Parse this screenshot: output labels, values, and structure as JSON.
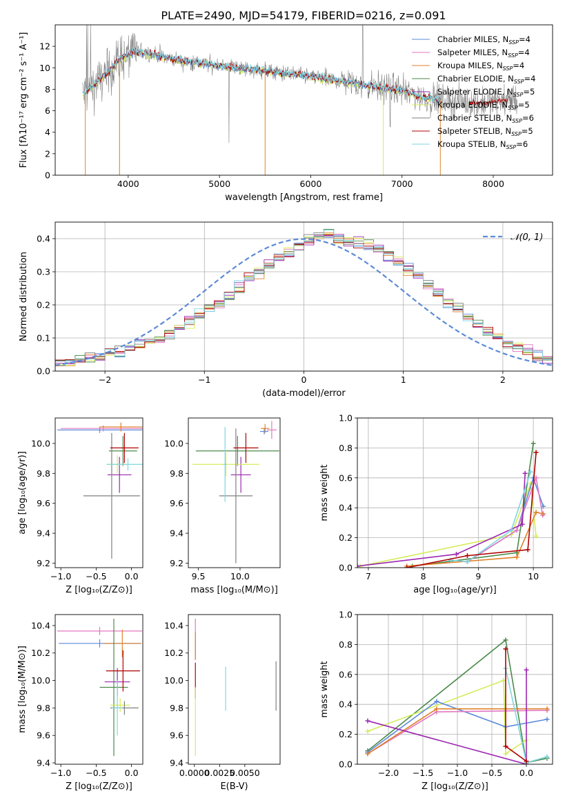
{
  "title": "PLATE=2490, MJD=54179, FIBERID=0216, z=0.091",
  "colors": {
    "chabrier_miles": "#5b8ad8",
    "salpeter_miles": "#e377c2",
    "kroupa_miles": "#e0802a",
    "chabrier_elodie": "#4a8a4a",
    "salpeter_elodie": "#9b27b0",
    "kroupa_elodie": "#d4ec58",
    "chabrier_stelib": "#7f7f7f",
    "salpeter_stelib": "#b00000",
    "kroupa_stelib": "#7fd6e0",
    "normal_curve": "#5b8ad8"
  },
  "chart_data": [
    {
      "id": "spectrum",
      "type": "line",
      "xlabel": "wavelength [Angstrom, rest frame]",
      "ylabel": "Flux [fλ10⁻¹⁷ erg cm⁻² s⁻¹ A⁻¹]",
      "xlim": [
        3200,
        8650
      ],
      "ylim": [
        0,
        14
      ],
      "xticks": [
        "4000",
        "5000",
        "6000",
        "7000",
        "8000"
      ],
      "yticks": [
        "0",
        "2",
        "4",
        "6",
        "8",
        "10",
        "12"
      ],
      "grid": false,
      "legend_position": "top-right",
      "legend": [
        "Chabrier MILES, N_SSP=4",
        "Salpeter MILES, N_SSP=4",
        "Kroupa MILES, N_SSP=4",
        "Chabrier ELODIE, N_SSP=4",
        "Salpeter ELODIE, N_SSP=5",
        "Kroupa ELODIE, N_SSP=5",
        "Chabrier STELIB, N_SSP=6",
        "Salpeter STELIB, N_SSP=5",
        "Kroupa STELIB, N_SSP=6"
      ],
      "data_continuum": {
        "x": [
          3500,
          3600,
          3700,
          3800,
          3900,
          4000,
          4100,
          4300,
          4500,
          4700,
          5000,
          5300,
          5600,
          6000,
          6400,
          6800,
          7000,
          7200,
          7400,
          7600,
          7800,
          8000,
          8200
        ],
        "y": [
          7.5,
          8.2,
          9.0,
          9.8,
          10.8,
          11.2,
          11.5,
          11.2,
          10.8,
          10.5,
          10.2,
          9.9,
          9.6,
          9.2,
          8.7,
          8.1,
          7.9,
          7.3,
          7.0,
          6.9,
          6.7,
          6.8,
          7.1
        ]
      }
    },
    {
      "id": "residual-histogram",
      "type": "bar",
      "xlabel": "(data-model)/error",
      "ylabel": "Normed distribution",
      "xlim": [
        -2.5,
        2.5
      ],
      "ylim": [
        0,
        0.45
      ],
      "xticks": [
        "−2",
        "−1",
        "0",
        "1",
        "2"
      ],
      "yticks": [
        "0.0",
        "0.1",
        "0.2",
        "0.3",
        "0.4"
      ],
      "grid": true,
      "legend_position": "top-right",
      "legend": [
        "𝒩(0, 1)"
      ],
      "bin_width": 0.1,
      "mean_bin_values": [
        0.025,
        0.03,
        0.035,
        0.04,
        0.045,
        0.055,
        0.06,
        0.07,
        0.08,
        0.09,
        0.1,
        0.115,
        0.13,
        0.15,
        0.17,
        0.19,
        0.2,
        0.23,
        0.25,
        0.28,
        0.3,
        0.32,
        0.34,
        0.36,
        0.38,
        0.395,
        0.41,
        0.415,
        0.4,
        0.39,
        0.39,
        0.38,
        0.37,
        0.35,
        0.33,
        0.31,
        0.29,
        0.26,
        0.24,
        0.2,
        0.19,
        0.165,
        0.14,
        0.12,
        0.1,
        0.085,
        0.07,
        0.06,
        0.045,
        0.035
      ]
    },
    {
      "id": "age-vs-Z",
      "type": "scatter",
      "xlabel": "Z [log₁₀(Z/Z⊙)]",
      "ylabel": "age  [log₁₀(age/yr)]",
      "xlim": [
        -1.08,
        0.16
      ],
      "ylim": [
        9.17,
        10.17
      ],
      "xticks": [
        "−1.0",
        "−0.5",
        "0.0"
      ],
      "yticks": [
        "9.2",
        "9.4",
        "9.6",
        "9.8",
        "10.0"
      ],
      "series": [
        {
          "x": -0.45,
          "y": 10.09,
          "xerr": 0.6,
          "yerr": 0.02,
          "c": "chabrier_miles"
        },
        {
          "x": -0.4,
          "y": 10.1,
          "xerr": 0.6,
          "yerr": 0.02,
          "c": "salpeter_miles"
        },
        {
          "x": -0.15,
          "y": 10.11,
          "xerr": 0.3,
          "yerr": 0.03,
          "c": "kroupa_miles"
        },
        {
          "x": -0.12,
          "y": 9.95,
          "xerr": 0.2,
          "yerr": 0.1,
          "c": "chabrier_elodie"
        },
        {
          "x": -0.17,
          "y": 9.79,
          "xerr": 0.17,
          "yerr": 0.12,
          "c": "salpeter_elodie"
        },
        {
          "x": -0.2,
          "y": 9.86,
          "xerr": 0.15,
          "yerr": 0.06,
          "c": "kroupa_elodie"
        },
        {
          "x": -0.28,
          "y": 9.65,
          "xerr": 0.4,
          "yerr": 0.42,
          "c": "chabrier_stelib"
        },
        {
          "x": -0.1,
          "y": 9.97,
          "xerr": 0.2,
          "yerr": 0.1,
          "c": "salpeter_stelib"
        },
        {
          "x": -0.05,
          "y": 9.86,
          "xerr": 0.3,
          "yerr": 0.04,
          "c": "kroupa_stelib"
        }
      ]
    },
    {
      "id": "age-vs-mass",
      "type": "scatter",
      "xlabel": "mass [log₁₀(M/M⊙)]",
      "xlim": [
        9.38,
        10.48
      ],
      "ylim": [
        9.17,
        10.17
      ],
      "xticks": [
        "9.5",
        "10.0"
      ],
      "yticks": [
        "9.2",
        "9.4",
        "9.6",
        "9.8",
        "10.0"
      ],
      "series": [
        {
          "x": 10.29,
          "y": 10.08,
          "xerr": 0.05,
          "yerr": 0.02,
          "c": "chabrier_miles"
        },
        {
          "x": 10.38,
          "y": 10.09,
          "xerr": 0.06,
          "yerr": 0.06,
          "c": "salpeter_miles"
        },
        {
          "x": 10.3,
          "y": 10.1,
          "xerr": 0.05,
          "yerr": 0.03,
          "c": "kroupa_miles"
        },
        {
          "x": 9.97,
          "y": 9.95,
          "xerr": 0.5,
          "yerr": 0.1,
          "c": "chabrier_elodie"
        },
        {
          "x": 10.01,
          "y": 9.79,
          "xerr": 0.12,
          "yerr": 0.12,
          "c": "salpeter_elodie"
        },
        {
          "x": 9.83,
          "y": 9.86,
          "xerr": 0.4,
          "yerr": 0.08,
          "c": "kroupa_elodie"
        },
        {
          "x": 9.95,
          "y": 9.65,
          "xerr": 0.2,
          "yerr": 0.45,
          "c": "chabrier_stelib"
        },
        {
          "x": 10.07,
          "y": 9.97,
          "xerr": 0.15,
          "yerr": 0.1,
          "c": "salpeter_stelib"
        },
        {
          "x": 9.82,
          "y": 9.86,
          "xerr": 0.02,
          "yerr": 0.25,
          "c": "kroupa_stelib"
        }
      ]
    },
    {
      "id": "mass-weight-vs-age",
      "type": "line",
      "xlabel": "age  [log₁₀(age/yr)]",
      "ylabel": "mass weight",
      "xlim": [
        6.8,
        10.35
      ],
      "ylim": [
        0,
        1
      ],
      "xticks": [
        "7",
        "8",
        "9",
        "10"
      ],
      "yticks": [
        "0.0",
        "0.2",
        "0.4",
        "0.6",
        "0.8",
        "1.0"
      ],
      "grid": true,
      "series": [
        {
          "c": "kroupa_elodie",
          "x": [
            6.85,
            9.6,
            9.95,
            10.05
          ],
          "y": [
            0.01,
            0.22,
            0.56,
            0.21
          ]
        },
        {
          "c": "chabrier_elodie",
          "x": [
            7.8,
            9.7,
            10.0
          ],
          "y": [
            0.01,
            0.1,
            0.83
          ]
        },
        {
          "c": "chabrier_miles",
          "x": [
            8.8,
            9.7,
            10.0,
            10.18
          ],
          "y": [
            0.04,
            0.25,
            0.6,
            0.41
          ]
        },
        {
          "c": "salpeter_miles",
          "x": [
            8.8,
            9.7,
            10.05,
            10.17
          ],
          "y": [
            0.04,
            0.25,
            0.6,
            0.35
          ]
        },
        {
          "c": "kroupa_miles",
          "x": [
            7.7,
            9.7,
            10.05,
            10.18
          ],
          "y": [
            0.01,
            0.07,
            0.37,
            0.36
          ]
        },
        {
          "c": "salpeter_elodie",
          "x": [
            6.8,
            8.6,
            9.8,
            9.85
          ],
          "y": [
            0.01,
            0.09,
            0.29,
            0.63
          ]
        },
        {
          "c": "kroupa_stelib",
          "x": [
            8.5,
            8.8,
            9.6,
            9.95
          ],
          "y": [
            0.05,
            0.04,
            0.25,
            0.64
          ]
        },
        {
          "c": "salpeter_stelib",
          "x": [
            7.7,
            8.8,
            9.9,
            10.05
          ],
          "y": [
            0.0,
            0.08,
            0.12,
            0.77
          ]
        }
      ]
    },
    {
      "id": "mass-vs-Z",
      "type": "scatter",
      "xlabel": "Z [log₁₀(Z/Z⊙)]",
      "ylabel": "mass [log₁₀(M/M⊙)]",
      "xlim": [
        -1.08,
        0.16
      ],
      "ylim": [
        9.39,
        10.48
      ],
      "xticks": [
        "−1.0",
        "−0.5",
        "0.0"
      ],
      "yticks": [
        "9.4",
        "9.6",
        "9.8",
        "10.0",
        "10.2",
        "10.4"
      ],
      "series": [
        {
          "x": -0.45,
          "y": 10.27,
          "xerr": 0.58,
          "yerr": 0.03,
          "c": "chabrier_miles"
        },
        {
          "x": -0.45,
          "y": 10.36,
          "xerr": 0.6,
          "yerr": 0.03,
          "c": "salpeter_miles"
        },
        {
          "x": -0.13,
          "y": 10.27,
          "xerr": 0.27,
          "yerr": 0.1,
          "c": "kroupa_miles"
        },
        {
          "x": -0.25,
          "y": 9.95,
          "xerr": 0.2,
          "yerr": 0.5,
          "c": "chabrier_elodie"
        },
        {
          "x": -0.2,
          "y": 9.99,
          "xerr": 0.18,
          "yerr": 0.1,
          "c": "salpeter_elodie"
        },
        {
          "x": -0.16,
          "y": 9.82,
          "xerr": 0.14,
          "yerr": 0.05,
          "c": "kroupa_elodie"
        },
        {
          "x": -0.1,
          "y": 9.8,
          "xerr": 0.2,
          "yerr": 0.05,
          "c": "chabrier_stelib"
        },
        {
          "x": -0.12,
          "y": 10.07,
          "xerr": 0.24,
          "yerr": 0.15,
          "c": "salpeter_stelib"
        },
        {
          "x": -0.2,
          "y": 9.8,
          "xerr": 0.07,
          "yerr": 0.2,
          "c": "kroupa_stelib"
        }
      ]
    },
    {
      "id": "mass-vs-EBV",
      "type": "scatter",
      "xlabel": "E(B-V)",
      "xlim": [
        -0.0006,
        0.0085
      ],
      "ylim": [
        9.39,
        10.48
      ],
      "xticks": [
        "0.0000",
        "0.0025",
        "0.0050"
      ],
      "yticks": [
        "9.4",
        "9.6",
        "9.8",
        "10.0",
        "10.2",
        "10.4"
      ],
      "series": [
        {
          "x": 0.0001,
          "y": 10.3,
          "yerr": 0.15,
          "c": "salpeter_miles"
        },
        {
          "x": 0.0001,
          "y": 10.25,
          "yerr": 0.1,
          "c": "kroupa_miles"
        },
        {
          "x": 0.0001,
          "y": 10.0,
          "yerr": 0.13,
          "c": "salpeter_stelib"
        },
        {
          "x": 0.0001,
          "y": 9.7,
          "yerr": 0.25,
          "c": "kroupa_elodie"
        },
        {
          "x": 0.0031,
          "y": 9.94,
          "yerr": 0.16,
          "c": "kroupa_stelib"
        },
        {
          "x": 0.0081,
          "y": 9.96,
          "yerr": 0.18,
          "c": "chabrier_stelib"
        }
      ]
    },
    {
      "id": "mass-weight-vs-Z",
      "type": "line",
      "xlabel": "Z [log₁₀(Z/Z⊙)]",
      "ylabel": "mass weight",
      "xlim": [
        -2.45,
        0.38
      ],
      "ylim": [
        0,
        1
      ],
      "xticks": [
        "−2.0",
        "−1.5",
        "−1.0",
        "−0.5",
        "0.0"
      ],
      "yticks": [
        "0.0",
        "0.2",
        "0.4",
        "0.6",
        "0.8",
        "1.0"
      ],
      "grid": true,
      "series": [
        {
          "c": "chabrier_elodie",
          "x": [
            -2.3,
            -0.3,
            0.0,
            0.3
          ],
          "y": [
            0.09,
            0.83,
            0.01,
            0.04
          ]
        },
        {
          "c": "kroupa_elodie",
          "x": [
            -2.3,
            -0.33,
            -0.3,
            0.0
          ],
          "y": [
            0.22,
            0.56,
            0.07,
            0.16
          ]
        },
        {
          "c": "chabrier_miles",
          "x": [
            -2.3,
            -1.3,
            -0.3,
            0.3
          ],
          "y": [
            0.08,
            0.42,
            0.25,
            0.3
          ]
        },
        {
          "c": "salpeter_miles",
          "x": [
            -2.3,
            -1.3,
            0.3
          ],
          "y": [
            0.07,
            0.35,
            0.36
          ]
        },
        {
          "c": "kroupa_miles",
          "x": [
            -2.3,
            -1.3,
            0.3
          ],
          "y": [
            0.07,
            0.37,
            0.37
          ]
        },
        {
          "c": "salpeter_elodie",
          "x": [
            -2.3,
            0.0,
            0.0
          ],
          "y": [
            0.29,
            0.0,
            0.63
          ]
        },
        {
          "c": "kroupa_stelib",
          "x": [
            -0.3,
            0.0,
            0.3
          ],
          "y": [
            0.64,
            0.01,
            0.05
          ]
        },
        {
          "c": "salpeter_stelib",
          "x": [
            -0.3,
            -0.3,
            0.0
          ],
          "y": [
            0.77,
            0.12,
            0.02
          ]
        }
      ]
    }
  ]
}
